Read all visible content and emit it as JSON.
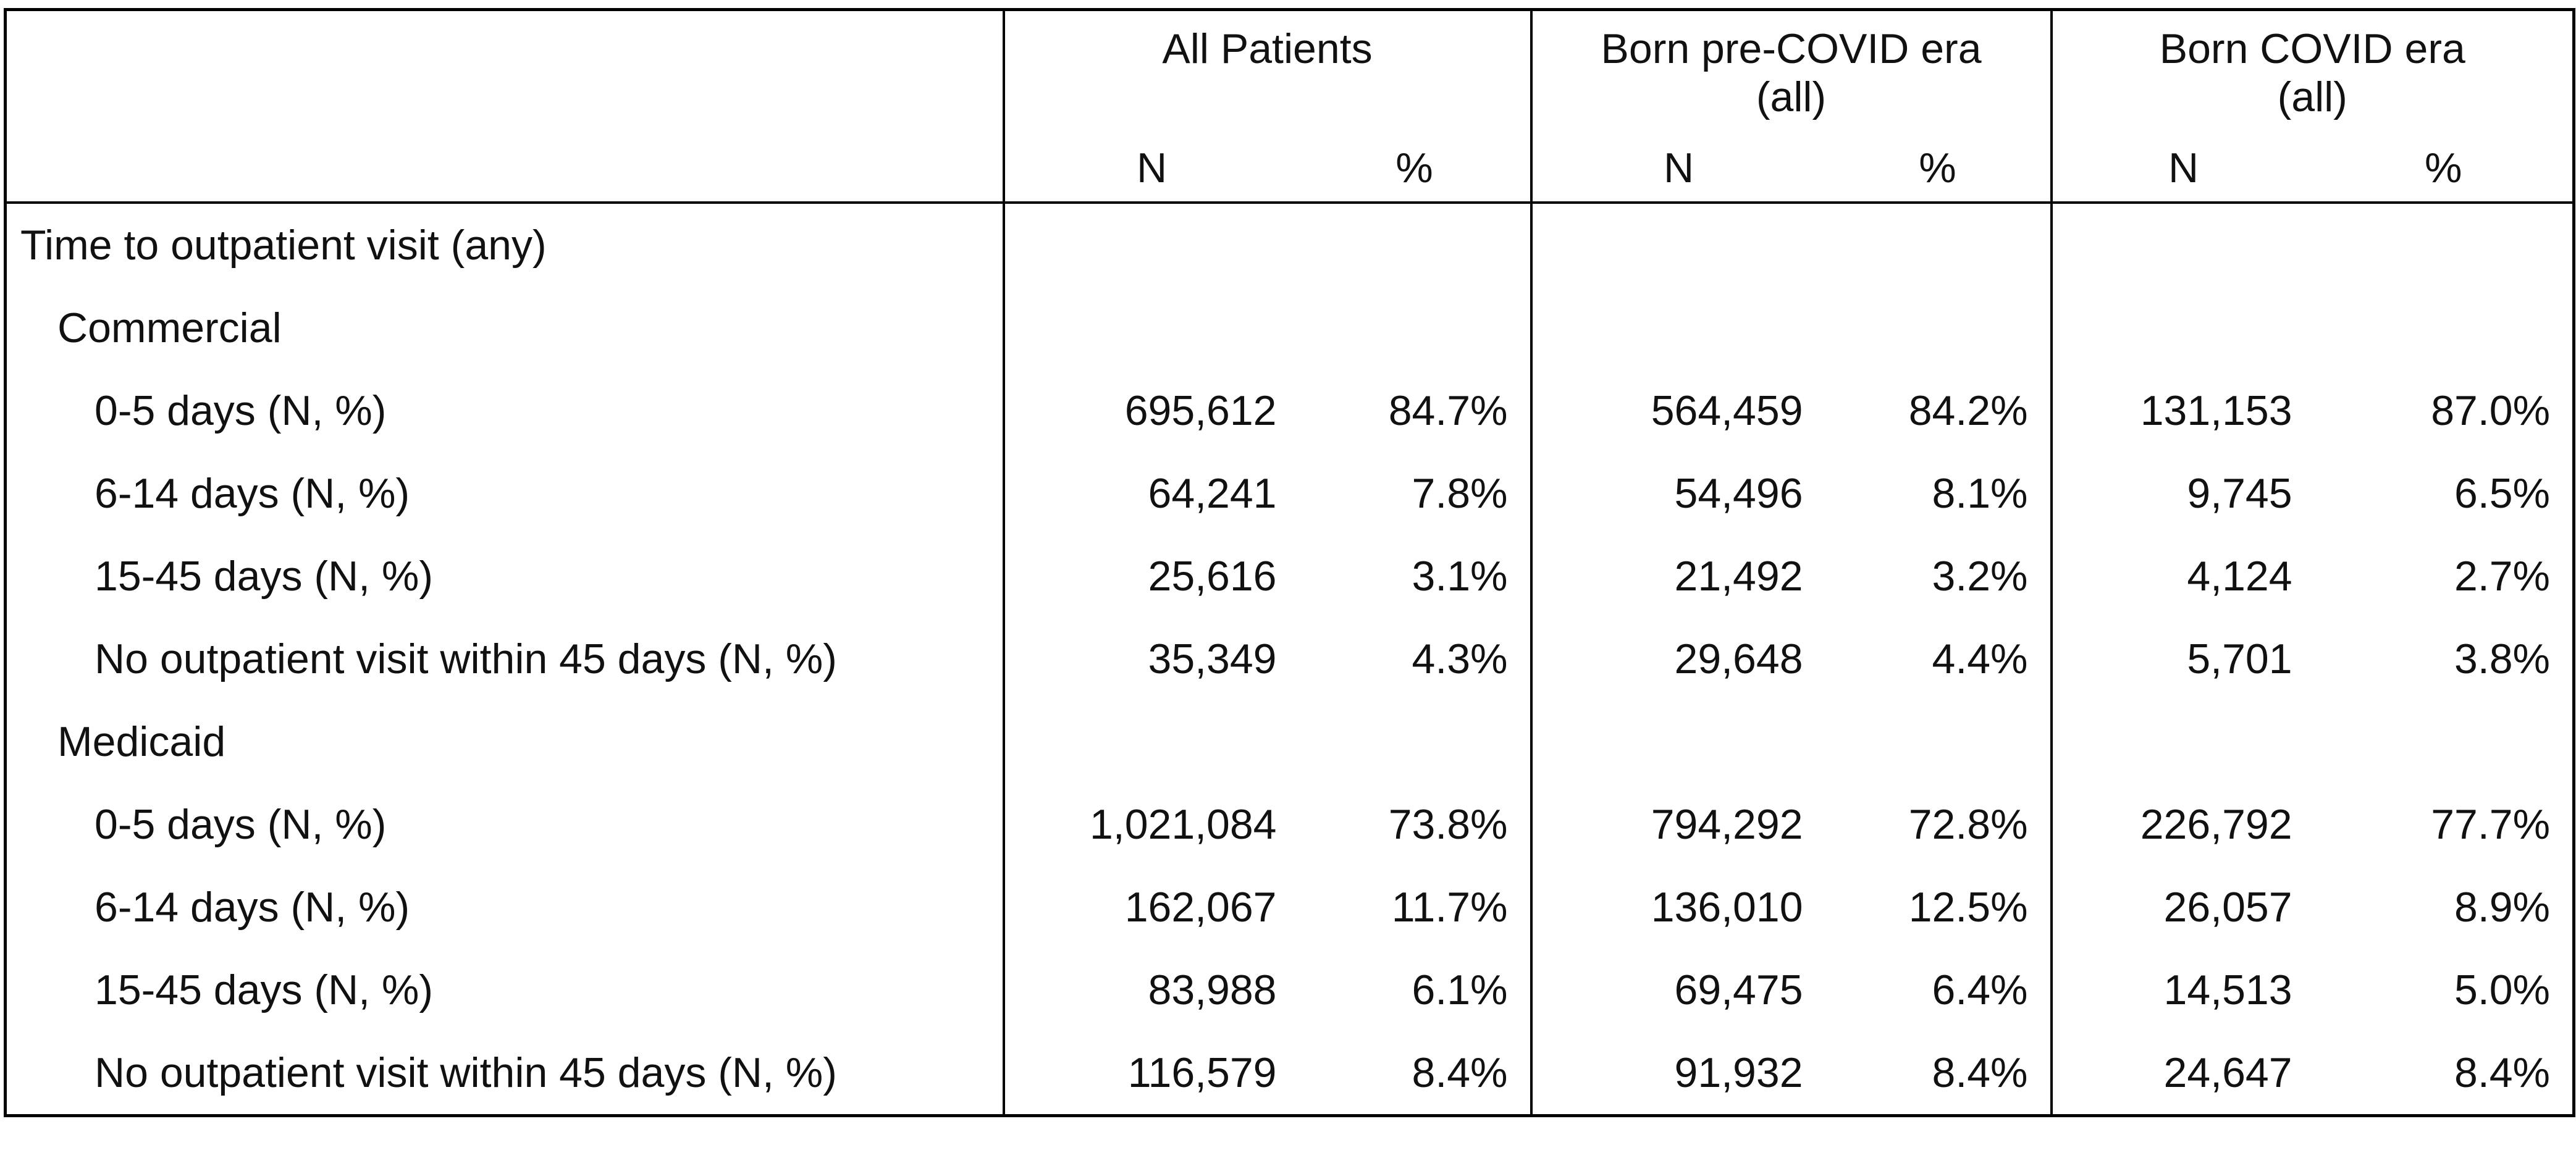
{
  "table": {
    "groups": [
      {
        "label_line1": "All Patients",
        "label_line2": ""
      },
      {
        "label_line1": "Born pre-COVID era",
        "label_line2": "(all)"
      },
      {
        "label_line1": "Born COVID era",
        "label_line2": "(all)"
      }
    ],
    "sub_headers": [
      "N",
      "%",
      "N",
      "%",
      "N",
      "%"
    ],
    "rows": [
      {
        "label": "Time to outpatient visit (any)",
        "level": 0,
        "values": [
          "",
          "",
          "",
          "",
          "",
          ""
        ]
      },
      {
        "label": "Commercial",
        "level": 1,
        "values": [
          "",
          "",
          "",
          "",
          "",
          ""
        ]
      },
      {
        "label": "0-5 days (N, %)",
        "level": 2,
        "values": [
          "695,612",
          "84.7%",
          "564,459",
          "84.2%",
          "131,153",
          "87.0%"
        ]
      },
      {
        "label": "6-14 days (N, %)",
        "level": 2,
        "values": [
          "64,241",
          "7.8%",
          "54,496",
          "8.1%",
          "9,745",
          "6.5%"
        ]
      },
      {
        "label": "15-45 days (N, %)",
        "level": 2,
        "values": [
          "25,616",
          "3.1%",
          "21,492",
          "3.2%",
          "4,124",
          "2.7%"
        ]
      },
      {
        "label": "No outpatient visit within 45 days (N, %)",
        "level": 2,
        "values": [
          "35,349",
          "4.3%",
          "29,648",
          "4.4%",
          "5,701",
          "3.8%"
        ]
      },
      {
        "label": "Medicaid",
        "level": 1,
        "values": [
          "",
          "",
          "",
          "",
          "",
          ""
        ]
      },
      {
        "label": "0-5 days (N, %)",
        "level": 2,
        "values": [
          "1,021,084",
          "73.8%",
          "794,292",
          "72.8%",
          "226,792",
          "77.7%"
        ]
      },
      {
        "label": "6-14 days (N, %)",
        "level": 2,
        "values": [
          "162,067",
          "11.7%",
          "136,010",
          "12.5%",
          "26,057",
          "8.9%"
        ]
      },
      {
        "label": "15-45 days (N, %)",
        "level": 2,
        "values": [
          "83,988",
          "6.1%",
          "69,475",
          "6.4%",
          "14,513",
          "5.0%"
        ]
      },
      {
        "label": "No outpatient visit within 45 days (N, %)",
        "level": 2,
        "values": [
          "116,579",
          "8.4%",
          "91,932",
          "8.4%",
          "24,647",
          "8.4%"
        ]
      }
    ]
  }
}
